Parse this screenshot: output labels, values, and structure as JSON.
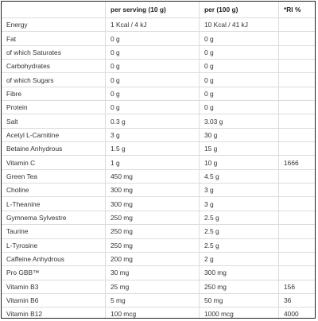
{
  "headers": [
    "",
    "per serving (10 g)",
    "per (100 g)",
    "*RI %"
  ],
  "rows": [
    [
      "Energy",
      "1 Kcal / 4 kJ",
      "10 Kcal / 41 kJ",
      ""
    ],
    [
      "Fat",
      "0 g",
      "0 g",
      ""
    ],
    [
      "of which Saturates",
      "0 g",
      "0 g",
      ""
    ],
    [
      "Carbohydrates",
      "0 g",
      "0 g",
      ""
    ],
    [
      "of which Sugars",
      "0 g",
      "0 g",
      ""
    ],
    [
      "Fibre",
      "0 g",
      "0 g",
      ""
    ],
    [
      "Protein",
      "0 g",
      "0 g",
      ""
    ],
    [
      "Salt",
      "0.3 g",
      "3.03 g",
      ""
    ],
    [
      "Acetyl L-Carnitine",
      "3 g",
      "30 g",
      ""
    ],
    [
      "Betaine Anhydrous",
      "1.5 g",
      "15 g",
      ""
    ],
    [
      "Vitamin C",
      "1 g",
      "10 g",
      "1666"
    ],
    [
      "Green Tea",
      "450 mg",
      "4.5 g",
      ""
    ],
    [
      "Choline",
      "300 mg",
      "3 g",
      ""
    ],
    [
      "L-Theanine",
      "300 mg",
      "3 g",
      ""
    ],
    [
      "Gymnema Sylvestre",
      "250 mg",
      "2.5 g",
      ""
    ],
    [
      "Taurine",
      "250 mg",
      "2.5 g",
      ""
    ],
    [
      "L-Tyrosine",
      "250 mg",
      "2.5 g",
      ""
    ],
    [
      "Caffeine Anhydrous",
      "200 mg",
      "2 g",
      ""
    ],
    [
      "Pro GBB™",
      "30 mg",
      "300 mg",
      ""
    ],
    [
      "Vitamin B3",
      "25 mg",
      "250 mg",
      "156"
    ],
    [
      "Vitamin B6",
      "5 mg",
      "50 mg",
      "36"
    ],
    [
      "Vitamin B12",
      "100 mcg",
      "1000 mcg",
      "4000"
    ]
  ]
}
